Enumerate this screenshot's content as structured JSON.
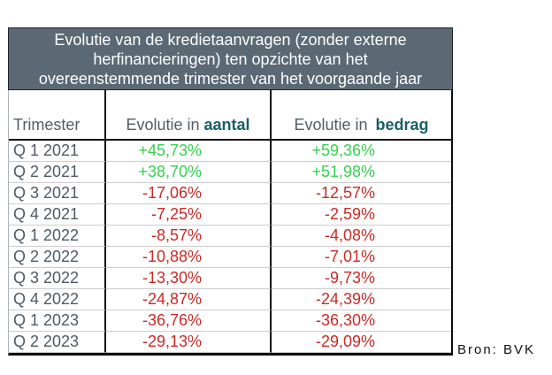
{
  "title": {
    "lines": [
      "Evolutie van de kredietaanvragen (zonder externe",
      "herfinancieringen) ten opzichte van het",
      "overeenstemmende trimester van het voorgaande jaar"
    ]
  },
  "header": {
    "col_trimester": "Trimester",
    "col_aantal_prefix": "Evolutie in",
    "col_aantal_bold": "aantal",
    "col_bedrag_prefix": "Evolutie in",
    "col_bedrag_bold": "bedrag"
  },
  "rows": [
    {
      "trimester": "Q 1 2021",
      "aantal": "+45,73%",
      "bedrag": "+59,36%"
    },
    {
      "trimester": "Q 2 2021",
      "aantal": "+38,70%",
      "bedrag": "+51,98%"
    },
    {
      "trimester": "Q 3 2021",
      "aantal": "-17,06%",
      "bedrag": "-12,57%"
    },
    {
      "trimester": "Q 4 2021",
      "aantal": "-7,25%",
      "bedrag": "-2,59%"
    },
    {
      "trimester": "Q 1 2022",
      "aantal": "-8,57%",
      "bedrag": "-4,08%"
    },
    {
      "trimester": "Q 2 2022",
      "aantal": "-10,88%",
      "bedrag": "-7,01%"
    },
    {
      "trimester": "Q 3 2022",
      "aantal": "-13,30%",
      "bedrag": "-9,73%"
    },
    {
      "trimester": "Q 4 2022",
      "aantal": "-24,87%",
      "bedrag": "-24,39%"
    },
    {
      "trimester": "Q 1 2023",
      "aantal": "-36,76%",
      "bedrag": "-36,30%"
    },
    {
      "trimester": "Q 2 2023",
      "aantal": "-29,13%",
      "bedrag": "-29,09%"
    }
  ],
  "source": "Bron: BVK",
  "colors": {
    "positive": "#35d14e",
    "negative": "#cb2a25",
    "title_bg": "#5b6975",
    "accent_teal": "#186069",
    "label": "#4d5a66"
  },
  "chart_data": {
    "type": "table",
    "title": "Evolutie van de kredietaanvragen (zonder externe herfinancieringen) ten opzichte van het overeenstemmende trimester van het voorgaande jaar",
    "columns": [
      "Trimester",
      "Evolutie in aantal",
      "Evolutie in bedrag"
    ],
    "categories": [
      "Q 1 2021",
      "Q 2 2021",
      "Q 3 2021",
      "Q 4 2021",
      "Q 1 2022",
      "Q 2 2022",
      "Q 3 2022",
      "Q 4 2022",
      "Q 1 2023",
      "Q 2 2023"
    ],
    "series": [
      {
        "name": "Evolutie in aantal",
        "unit": "%",
        "values": [
          45.73,
          38.7,
          -17.06,
          -7.25,
          -8.57,
          -10.88,
          -13.3,
          -24.87,
          -36.76,
          -29.13
        ]
      },
      {
        "name": "Evolutie in bedrag",
        "unit": "%",
        "values": [
          59.36,
          51.98,
          -12.57,
          -2.59,
          -4.08,
          -7.01,
          -9.73,
          -24.39,
          -36.3,
          -29.09
        ]
      }
    ],
    "value_color_rule": "positive values green, negative values red",
    "source": "Bron: BVK"
  }
}
